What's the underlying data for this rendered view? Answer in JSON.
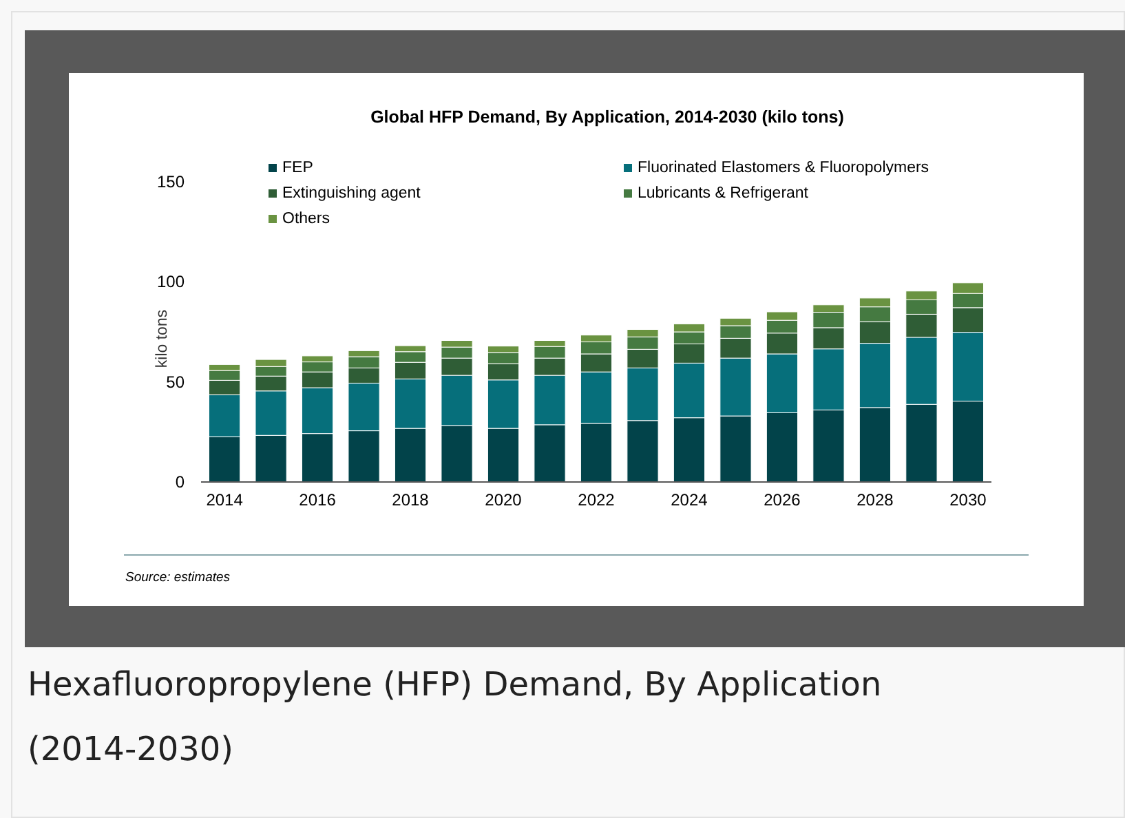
{
  "chart_data": {
    "type": "bar",
    "title": "Global HFP Demand, By Application, 2014-2030 (kilo tons)",
    "ylabel": "kilo tons",
    "categories": [
      "2014",
      null,
      "2016",
      null,
      "2018",
      null,
      "2020",
      null,
      "2022",
      null,
      "2024",
      null,
      "2026",
      null,
      "2028",
      null,
      "2030"
    ],
    "stacked": true,
    "ylim": [
      0,
      150
    ],
    "yticks": [
      0,
      50,
      100,
      150
    ],
    "grid": false,
    "legend": "top left",
    "series": [
      {
        "name": "FEP",
        "color": "#02434a",
        "values": [
          22.6,
          23.3,
          24.2,
          25.6,
          26.8,
          28.2,
          26.8,
          28.6,
          29.3,
          30.7,
          32.1,
          33,
          34.6,
          36,
          37.2,
          38.8,
          40.4
        ]
      },
      {
        "name": "Fluorinated Elastomers & Fluoropolymers",
        "color": "#066f7b",
        "values": [
          21,
          22.2,
          22.9,
          23.8,
          24.7,
          25.1,
          24.2,
          24.7,
          25.7,
          26.3,
          27.3,
          28.9,
          29.4,
          30.5,
          32.1,
          33.5,
          34.4
        ]
      },
      {
        "name": "Extinguishing agent",
        "color": "#2f5d36",
        "values": [
          7.2,
          7.4,
          7.9,
          7.6,
          8.3,
          8.6,
          8.1,
          8.6,
          9,
          9.3,
          9.6,
          9.9,
          10.4,
          10.6,
          10.8,
          11.5,
          12.3
        ]
      },
      {
        "name": "Lubricants & Refrigerant",
        "color": "#457a41",
        "values": [
          4.9,
          4.8,
          5,
          5.6,
          5.3,
          5.5,
          5.6,
          5.8,
          6,
          6.2,
          6,
          6.3,
          6.4,
          7.7,
          7.4,
          7.2,
          7.1
        ]
      },
      {
        "name": "Others",
        "color": "#6a9341",
        "values": [
          3,
          3.5,
          3,
          3,
          3,
          3.3,
          3.2,
          3,
          3.4,
          3.7,
          4,
          3.7,
          4.2,
          3.7,
          4.4,
          4.4,
          5.3
        ]
      }
    ],
    "annotations": [
      "Source: estimates",
      "Hexafluoropropylene (HFP) Demand, By Application (2014-2030)"
    ]
  }
}
